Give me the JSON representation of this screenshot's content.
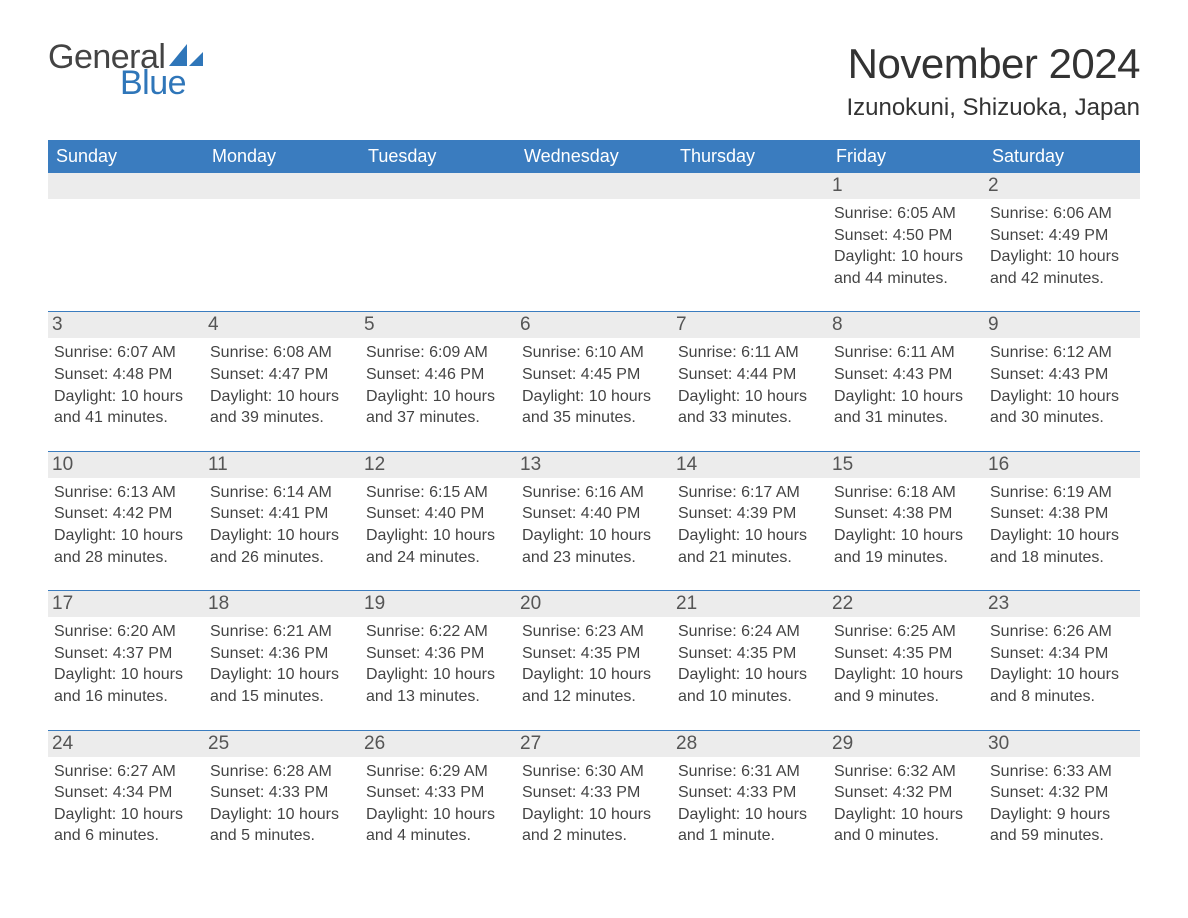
{
  "logo": {
    "text_general": "General",
    "text_blue": "Blue",
    "sail_color": "#2f76b9"
  },
  "title": "November 2024",
  "location": "Izunokuni, Shizuoka, Japan",
  "colors": {
    "header_bg": "#3a7cbf",
    "header_text": "#ffffff",
    "daynum_bg": "#ececec",
    "border": "#3a7cbf",
    "logo_blue": "#2f76b9"
  },
  "weekdays": [
    "Sunday",
    "Monday",
    "Tuesday",
    "Wednesday",
    "Thursday",
    "Friday",
    "Saturday"
  ],
  "weeks": [
    [
      {
        "empty": true
      },
      {
        "empty": true
      },
      {
        "empty": true
      },
      {
        "empty": true
      },
      {
        "empty": true
      },
      {
        "day": "1",
        "sunrise": "Sunrise: 6:05 AM",
        "sunset": "Sunset: 4:50 PM",
        "daylight1": "Daylight: 10 hours",
        "daylight2": "and 44 minutes."
      },
      {
        "day": "2",
        "sunrise": "Sunrise: 6:06 AM",
        "sunset": "Sunset: 4:49 PM",
        "daylight1": "Daylight: 10 hours",
        "daylight2": "and 42 minutes."
      }
    ],
    [
      {
        "day": "3",
        "sunrise": "Sunrise: 6:07 AM",
        "sunset": "Sunset: 4:48 PM",
        "daylight1": "Daylight: 10 hours",
        "daylight2": "and 41 minutes."
      },
      {
        "day": "4",
        "sunrise": "Sunrise: 6:08 AM",
        "sunset": "Sunset: 4:47 PM",
        "daylight1": "Daylight: 10 hours",
        "daylight2": "and 39 minutes."
      },
      {
        "day": "5",
        "sunrise": "Sunrise: 6:09 AM",
        "sunset": "Sunset: 4:46 PM",
        "daylight1": "Daylight: 10 hours",
        "daylight2": "and 37 minutes."
      },
      {
        "day": "6",
        "sunrise": "Sunrise: 6:10 AM",
        "sunset": "Sunset: 4:45 PM",
        "daylight1": "Daylight: 10 hours",
        "daylight2": "and 35 minutes."
      },
      {
        "day": "7",
        "sunrise": "Sunrise: 6:11 AM",
        "sunset": "Sunset: 4:44 PM",
        "daylight1": "Daylight: 10 hours",
        "daylight2": "and 33 minutes."
      },
      {
        "day": "8",
        "sunrise": "Sunrise: 6:11 AM",
        "sunset": "Sunset: 4:43 PM",
        "daylight1": "Daylight: 10 hours",
        "daylight2": "and 31 minutes."
      },
      {
        "day": "9",
        "sunrise": "Sunrise: 6:12 AM",
        "sunset": "Sunset: 4:43 PM",
        "daylight1": "Daylight: 10 hours",
        "daylight2": "and 30 minutes."
      }
    ],
    [
      {
        "day": "10",
        "sunrise": "Sunrise: 6:13 AM",
        "sunset": "Sunset: 4:42 PM",
        "daylight1": "Daylight: 10 hours",
        "daylight2": "and 28 minutes."
      },
      {
        "day": "11",
        "sunrise": "Sunrise: 6:14 AM",
        "sunset": "Sunset: 4:41 PM",
        "daylight1": "Daylight: 10 hours",
        "daylight2": "and 26 minutes."
      },
      {
        "day": "12",
        "sunrise": "Sunrise: 6:15 AM",
        "sunset": "Sunset: 4:40 PM",
        "daylight1": "Daylight: 10 hours",
        "daylight2": "and 24 minutes."
      },
      {
        "day": "13",
        "sunrise": "Sunrise: 6:16 AM",
        "sunset": "Sunset: 4:40 PM",
        "daylight1": "Daylight: 10 hours",
        "daylight2": "and 23 minutes."
      },
      {
        "day": "14",
        "sunrise": "Sunrise: 6:17 AM",
        "sunset": "Sunset: 4:39 PM",
        "daylight1": "Daylight: 10 hours",
        "daylight2": "and 21 minutes."
      },
      {
        "day": "15",
        "sunrise": "Sunrise: 6:18 AM",
        "sunset": "Sunset: 4:38 PM",
        "daylight1": "Daylight: 10 hours",
        "daylight2": "and 19 minutes."
      },
      {
        "day": "16",
        "sunrise": "Sunrise: 6:19 AM",
        "sunset": "Sunset: 4:38 PM",
        "daylight1": "Daylight: 10 hours",
        "daylight2": "and 18 minutes."
      }
    ],
    [
      {
        "day": "17",
        "sunrise": "Sunrise: 6:20 AM",
        "sunset": "Sunset: 4:37 PM",
        "daylight1": "Daylight: 10 hours",
        "daylight2": "and 16 minutes."
      },
      {
        "day": "18",
        "sunrise": "Sunrise: 6:21 AM",
        "sunset": "Sunset: 4:36 PM",
        "daylight1": "Daylight: 10 hours",
        "daylight2": "and 15 minutes."
      },
      {
        "day": "19",
        "sunrise": "Sunrise: 6:22 AM",
        "sunset": "Sunset: 4:36 PM",
        "daylight1": "Daylight: 10 hours",
        "daylight2": "and 13 minutes."
      },
      {
        "day": "20",
        "sunrise": "Sunrise: 6:23 AM",
        "sunset": "Sunset: 4:35 PM",
        "daylight1": "Daylight: 10 hours",
        "daylight2": "and 12 minutes."
      },
      {
        "day": "21",
        "sunrise": "Sunrise: 6:24 AM",
        "sunset": "Sunset: 4:35 PM",
        "daylight1": "Daylight: 10 hours",
        "daylight2": "and 10 minutes."
      },
      {
        "day": "22",
        "sunrise": "Sunrise: 6:25 AM",
        "sunset": "Sunset: 4:35 PM",
        "daylight1": "Daylight: 10 hours",
        "daylight2": "and 9 minutes."
      },
      {
        "day": "23",
        "sunrise": "Sunrise: 6:26 AM",
        "sunset": "Sunset: 4:34 PM",
        "daylight1": "Daylight: 10 hours",
        "daylight2": "and 8 minutes."
      }
    ],
    [
      {
        "day": "24",
        "sunrise": "Sunrise: 6:27 AM",
        "sunset": "Sunset: 4:34 PM",
        "daylight1": "Daylight: 10 hours",
        "daylight2": "and 6 minutes."
      },
      {
        "day": "25",
        "sunrise": "Sunrise: 6:28 AM",
        "sunset": "Sunset: 4:33 PM",
        "daylight1": "Daylight: 10 hours",
        "daylight2": "and 5 minutes."
      },
      {
        "day": "26",
        "sunrise": "Sunrise: 6:29 AM",
        "sunset": "Sunset: 4:33 PM",
        "daylight1": "Daylight: 10 hours",
        "daylight2": "and 4 minutes."
      },
      {
        "day": "27",
        "sunrise": "Sunrise: 6:30 AM",
        "sunset": "Sunset: 4:33 PM",
        "daylight1": "Daylight: 10 hours",
        "daylight2": "and 2 minutes."
      },
      {
        "day": "28",
        "sunrise": "Sunrise: 6:31 AM",
        "sunset": "Sunset: 4:33 PM",
        "daylight1": "Daylight: 10 hours",
        "daylight2": "and 1 minute."
      },
      {
        "day": "29",
        "sunrise": "Sunrise: 6:32 AM",
        "sunset": "Sunset: 4:32 PM",
        "daylight1": "Daylight: 10 hours",
        "daylight2": "and 0 minutes."
      },
      {
        "day": "30",
        "sunrise": "Sunrise: 6:33 AM",
        "sunset": "Sunset: 4:32 PM",
        "daylight1": "Daylight: 9 hours",
        "daylight2": "and 59 minutes."
      }
    ]
  ]
}
